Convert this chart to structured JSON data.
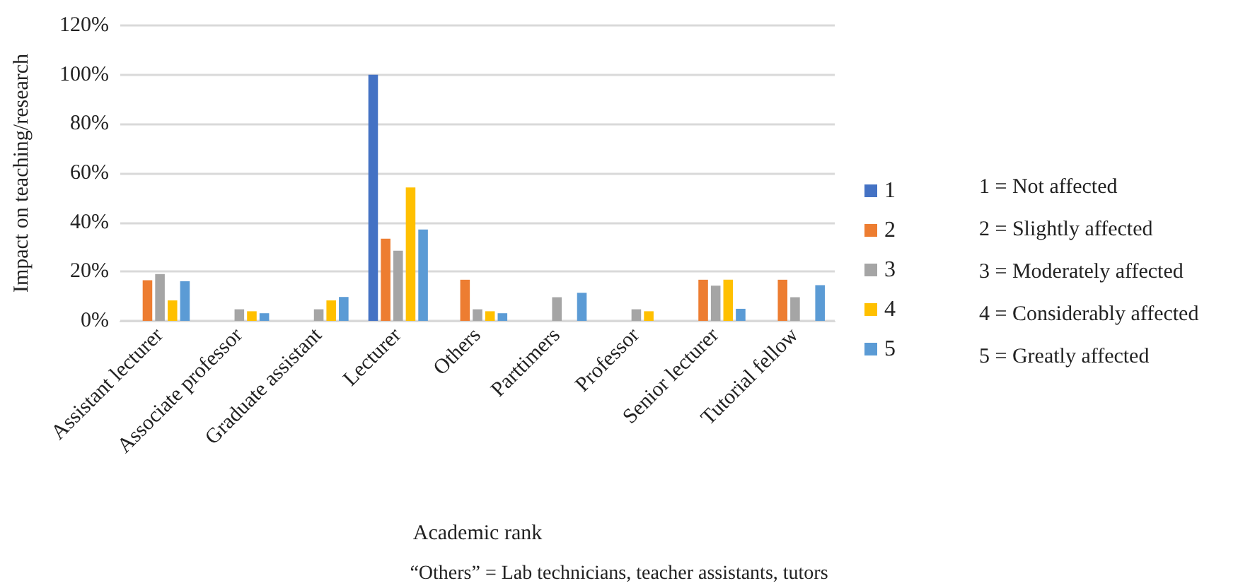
{
  "chart_data": {
    "type": "bar",
    "xlabel": "Academic rank",
    "ylabel": "Impact on teaching/research",
    "categories": [
      "Assistant lecturer",
      "Associate professor",
      "Graduate assistant",
      "Lecturer",
      "Others",
      "Parttimers",
      "Professor",
      "Senior lecturer",
      "Tutorial fellow"
    ],
    "series": [
      {
        "name": "1",
        "color": "#4472c4",
        "values": [
          null,
          null,
          null,
          100,
          null,
          null,
          null,
          null,
          null
        ]
      },
      {
        "name": "2",
        "color": "#ed7d31",
        "values": [
          16.5,
          null,
          null,
          33.4,
          16.7,
          null,
          null,
          16.7,
          16.7
        ]
      },
      {
        "name": "3",
        "color": "#a5a5a5",
        "values": [
          19,
          4.7,
          4.7,
          28.5,
          4.7,
          9.6,
          4.7,
          14.3,
          9.6
        ]
      },
      {
        "name": "4",
        "color": "#ffc000",
        "values": [
          8.3,
          3.9,
          8.3,
          54.2,
          3.9,
          null,
          3.9,
          16.7,
          null
        ]
      },
      {
        "name": "5",
        "color": "#5b9bd5",
        "values": [
          16.1,
          3.1,
          9.7,
          37.1,
          3.1,
          11.4,
          null,
          4.9,
          14.5
        ]
      }
    ],
    "ylim": [
      0,
      120
    ],
    "yticks": [
      {
        "value": 0,
        "label": "0%"
      },
      {
        "value": 20,
        "label": "20%"
      },
      {
        "value": 40,
        "label": "40%"
      },
      {
        "value": 60,
        "label": "60%"
      },
      {
        "value": 80,
        "label": "80%"
      },
      {
        "value": 100,
        "label": "100%"
      },
      {
        "value": 120,
        "label": "120%"
      }
    ],
    "grid": "y",
    "legend": "right",
    "annotations": [
      "1 = Not affected",
      "2 = Slightly affected",
      "3 = Moderately affected",
      "4 = Considerably affected",
      "5 = Greatly affected",
      "“Others” = Lab technicians, teacher assistants, tutors"
    ]
  }
}
